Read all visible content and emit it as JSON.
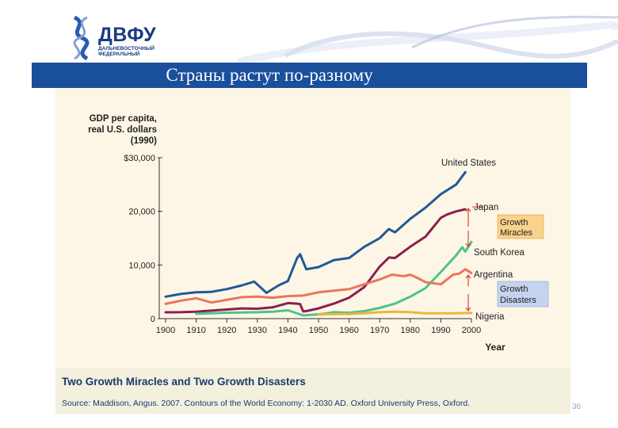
{
  "logo": {
    "name": "ДВФУ",
    "subtitle": "ДАЛЬНЕВОСТОЧНЫЙ ФЕДЕРАЛЬНЫЙ"
  },
  "slide": {
    "title": "Страны растут по-разному",
    "page_number": "36"
  },
  "caption": {
    "title": "Two Growth Miracles and Two Growth Disasters",
    "source": "Source: Maddison, Angus. 2007. Contours of the World Economy: 1-2030 AD. Oxford University Press, Oxford."
  },
  "chart_data": {
    "type": "line",
    "title": "Two Growth Miracles and Two Growth Disasters",
    "ylabel": "GDP per capita, real U.S. dollars (1990)",
    "xlabel": "Year",
    "xlim": [
      1900,
      2000
    ],
    "ylim": [
      0,
      30000
    ],
    "x_ticks": [
      "1900",
      "1910",
      "1920",
      "1930",
      "1940",
      "1950",
      "1960",
      "1970",
      "1980",
      "1990",
      "2000"
    ],
    "y_ticks": [
      "0",
      "10,000",
      "20,000",
      "$30,000"
    ],
    "y_tick_values": [
      0,
      10000,
      20000,
      30000
    ],
    "series": [
      {
        "name": "United States",
        "color": "#1f5a96",
        "x": [
          1900,
          1905,
          1910,
          1915,
          1920,
          1925,
          1929,
          1933,
          1937,
          1940,
          1943,
          1944,
          1946,
          1950,
          1955,
          1960,
          1965,
          1970,
          1973,
          1975,
          1980,
          1985,
          1990,
          1995,
          1998
        ],
        "y": [
          4100,
          4600,
          4900,
          5000,
          5500,
          6200,
          6900,
          4800,
          6200,
          7000,
          11300,
          12000,
          9200,
          9600,
          10900,
          11300,
          13400,
          15000,
          16700,
          16100,
          18600,
          20700,
          23200,
          25000,
          27300
        ]
      },
      {
        "name": "Japan",
        "color": "#8b1f4f",
        "x": [
          1900,
          1905,
          1910,
          1915,
          1920,
          1925,
          1930,
          1935,
          1940,
          1943,
          1944,
          1945,
          1946,
          1950,
          1955,
          1960,
          1965,
          1970,
          1973,
          1975,
          1980,
          1985,
          1990,
          1992,
          1995,
          1998
        ],
        "y": [
          1180,
          1200,
          1300,
          1500,
          1700,
          1900,
          1850,
          2100,
          2900,
          2800,
          2700,
          1350,
          1400,
          1900,
          2800,
          3900,
          5900,
          9700,
          11400,
          11300,
          13400,
          15300,
          18800,
          19400,
          20000,
          20400
        ]
      },
      {
        "name": "South Korea",
        "color": "#4cc48a",
        "x": [
          1910,
          1915,
          1920,
          1925,
          1930,
          1935,
          1940,
          1945,
          1950,
          1953,
          1955,
          1960,
          1965,
          1970,
          1975,
          1980,
          1985,
          1990,
          1995,
          1997,
          1998,
          2000
        ],
        "y": [
          900,
          1000,
          1100,
          1150,
          1200,
          1300,
          1550,
          600,
          800,
          1000,
          1200,
          1100,
          1400,
          2000,
          2800,
          4100,
          5700,
          8700,
          11800,
          13300,
          12500,
          14300
        ]
      },
      {
        "name": "Argentina",
        "color": "#e8765a",
        "x": [
          1900,
          1905,
          1910,
          1915,
          1920,
          1925,
          1930,
          1935,
          1940,
          1945,
          1950,
          1955,
          1960,
          1965,
          1970,
          1974,
          1978,
          1980,
          1983,
          1985,
          1990,
          1994,
          1996,
          1998,
          2000
        ],
        "y": [
          2750,
          3350,
          3800,
          3000,
          3500,
          4000,
          4100,
          3900,
          4200,
          4300,
          4900,
          5200,
          5500,
          6400,
          7300,
          8200,
          7900,
          8200,
          7400,
          6800,
          6400,
          8200,
          8400,
          9200,
          8500
        ]
      },
      {
        "name": "Nigeria",
        "color": "#f0b43c",
        "x": [
          1950,
          1955,
          1960,
          1965,
          1970,
          1975,
          1980,
          1985,
          1990,
          1995,
          2000
        ],
        "y": [
          750,
          850,
          850,
          1000,
          1200,
          1300,
          1200,
          1000,
          1000,
          1000,
          1050
        ]
      }
    ],
    "labels": {
      "us": "United States",
      "japan": "Japan",
      "korea": "South Korea",
      "argentina": "Argentina",
      "nigeria": "Nigeria",
      "miracles": "Growth Miracles",
      "disasters": "Growth Disasters"
    },
    "annotation_colors": {
      "miracles": "#f9d28c",
      "disasters": "#c6d3ee",
      "arrow": "#d4453a"
    }
  }
}
